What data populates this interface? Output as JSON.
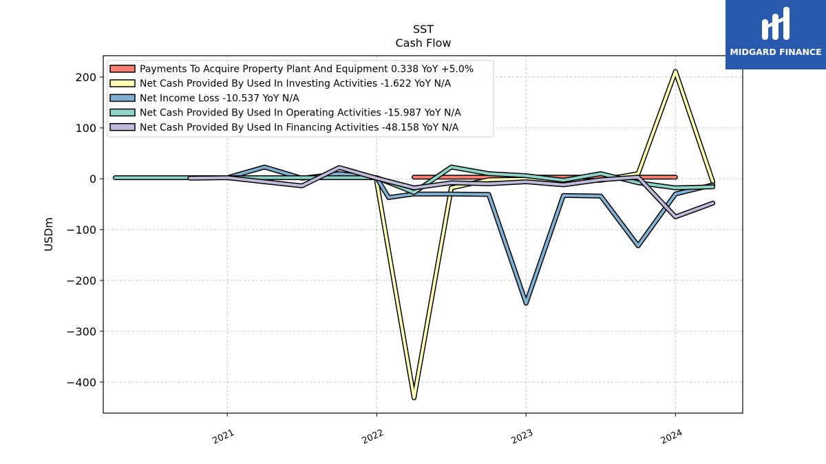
{
  "chart_data": {
    "type": "line",
    "title": "SST",
    "subtitle": "Cash Flow",
    "ylabel": "USDm",
    "xlabel": "",
    "xlim": [
      2020.17,
      2024.45
    ],
    "ylim": [
      -461,
      242
    ],
    "xticks": [
      2021,
      2022,
      2023,
      2024
    ],
    "yticks": [
      200,
      100,
      0,
      -100,
      -200,
      -300,
      -400
    ],
    "ytick_labels": [
      "200",
      "100",
      "0",
      "−100",
      "−200",
      "−300",
      "−400"
    ],
    "grid": true,
    "legend_position": "top-left",
    "series": [
      {
        "name": "Payments To Acquire Property Plant And Equipment",
        "legend": "Payments To Acquire Property Plant And Equipment  0.338 YoY +5.0%",
        "color": "#fb8072",
        "x": [
          2022.25,
          2022.5,
          2022.75,
          2023.0,
          2023.25,
          2023.5,
          2023.75,
          2024.0
        ],
        "y": [
          3,
          3,
          3,
          3,
          3,
          3,
          3,
          3
        ]
      },
      {
        "name": "Net Cash Provided By Used In Investing Activities",
        "legend": "Net Cash Provided By Used In Investing Activities  -1.622 YoY N/A",
        "color": "#ffffb3",
        "x": [
          2022.0,
          2022.25,
          2022.5,
          2022.75,
          2023.0,
          2023.25,
          2023.5,
          2023.75,
          2024.0,
          2024.25
        ],
        "y": [
          -5,
          -431,
          -18,
          -2,
          -1,
          -5,
          -3,
          10,
          211,
          -6
        ]
      },
      {
        "name": "Net Income Loss",
        "legend": "Net Income Loss  -10.537 YoY N/A",
        "color": "#80b1d3",
        "x": [
          2021.0,
          2021.25,
          2021.5,
          2021.75,
          2022.0,
          2022.08,
          2022.25,
          2022.5,
          2022.75,
          2023.0,
          2023.25,
          2023.5,
          2023.75,
          2024.0,
          2024.25
        ],
        "y": [
          2,
          23,
          1,
          10,
          2,
          -37,
          -30,
          -30,
          -31,
          -245,
          -33,
          -34,
          -132,
          -30,
          -12
        ]
      },
      {
        "name": "Net Cash Provided By Used In Operating Activities",
        "legend": "Net Cash Provided By Used In Operating Activities  -15.987 YoY N/A",
        "color": "#8dd3c7",
        "x": [
          2020.25,
          2021.0,
          2021.5,
          2022.0,
          2022.25,
          2022.5,
          2022.75,
          2023.0,
          2023.25,
          2023.5,
          2023.75,
          2024.0,
          2024.25
        ],
        "y": [
          2,
          2,
          2,
          2,
          -27,
          23,
          10,
          6,
          -3,
          10,
          -8,
          -18,
          -16
        ]
      },
      {
        "name": "Net Cash Provided By Used In Financing Activities",
        "legend": "Net Cash Provided By Used In Financing Activities  -48.158 YoY N/A",
        "color": "#bebada",
        "x": [
          2020.75,
          2021.0,
          2021.5,
          2021.75,
          2022.0,
          2022.25,
          2022.5,
          2022.75,
          2023.0,
          2023.25,
          2023.5,
          2023.75,
          2024.0,
          2024.25
        ],
        "y": [
          1,
          2,
          -14,
          22,
          1,
          -18,
          -8,
          -10,
          -6,
          -12,
          -2,
          3,
          -75,
          -48
        ]
      }
    ]
  },
  "logo": {
    "name": "MIDGARD FINANCE",
    "bg_color": "#2a5aad",
    "fg_color": "#ffffff"
  }
}
